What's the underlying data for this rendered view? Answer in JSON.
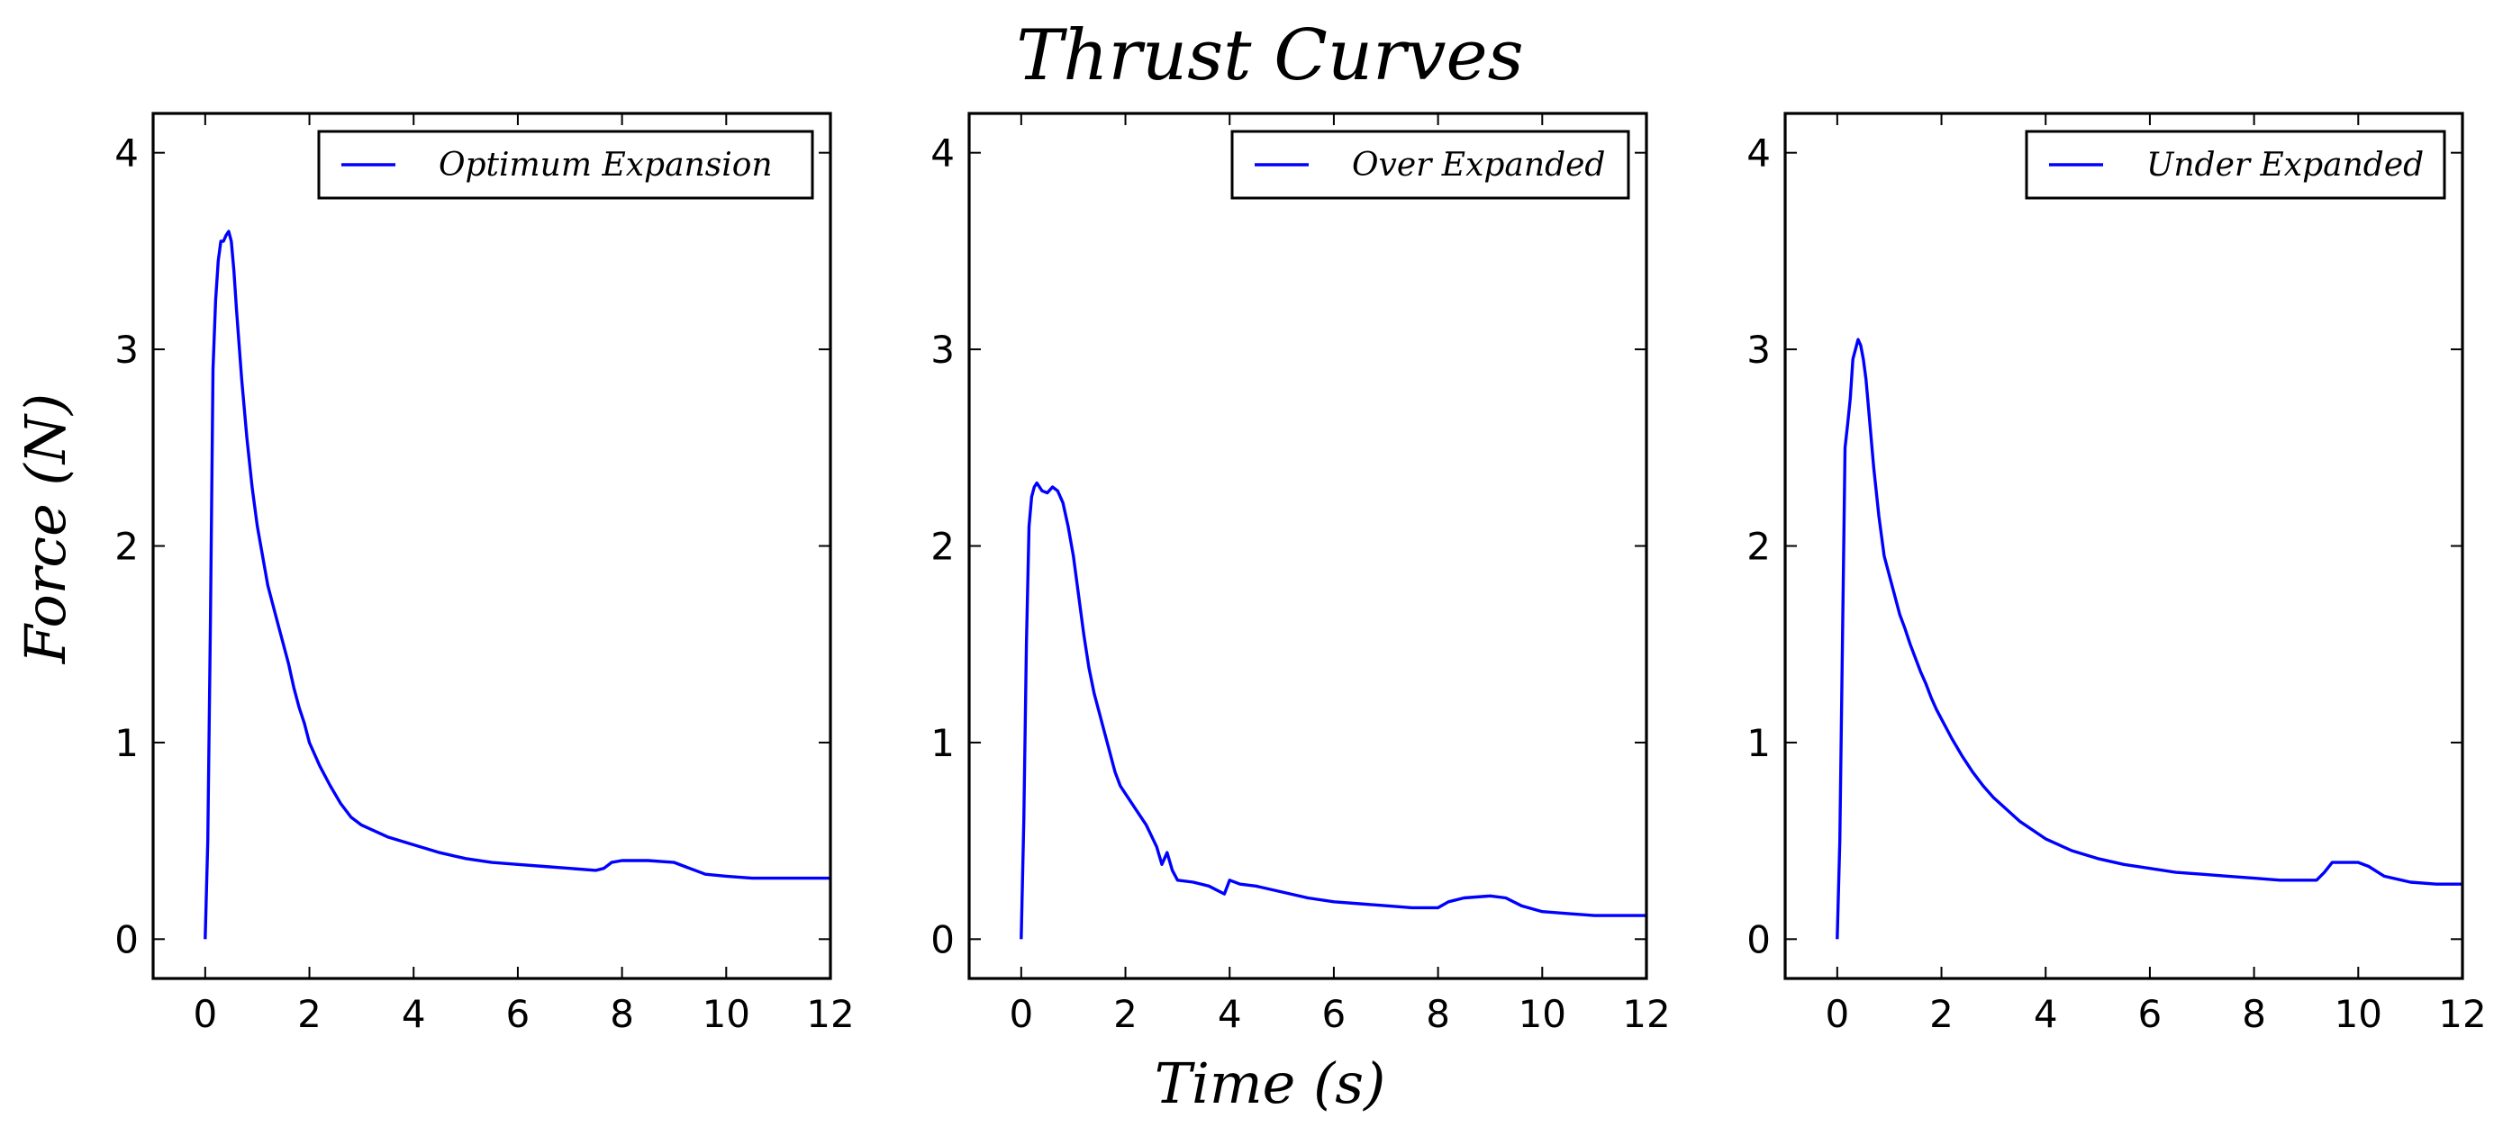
{
  "figure": {
    "title": "Thrust Curves",
    "xlabel": "Time (s)",
    "ylabel": "Force (N)"
  },
  "chart_data": [
    {
      "type": "line",
      "legend_position": "top-right",
      "grid": false,
      "xlim": [
        -1,
        12
      ],
      "ylim": [
        -0.2,
        4.2
      ],
      "xticks": [
        "0",
        "2",
        "4",
        "6",
        "8",
        "10",
        "12"
      ],
      "yticks": [
        "0",
        "1",
        "2",
        "3",
        "4"
      ],
      "series": [
        {
          "name": "Optimum Expansion",
          "color": "#0000ff",
          "points": [
            [
              0,
              0
            ],
            [
              0.05,
              0.5
            ],
            [
              0.1,
              1.6
            ],
            [
              0.15,
              2.9
            ],
            [
              0.2,
              3.25
            ],
            [
              0.25,
              3.45
            ],
            [
              0.3,
              3.55
            ],
            [
              0.35,
              3.55
            ],
            [
              0.4,
              3.58
            ],
            [
              0.45,
              3.6
            ],
            [
              0.5,
              3.55
            ],
            [
              0.55,
              3.4
            ],
            [
              0.6,
              3.2
            ],
            [
              0.7,
              2.85
            ],
            [
              0.8,
              2.55
            ],
            [
              0.9,
              2.3
            ],
            [
              1.0,
              2.1
            ],
            [
              1.1,
              1.95
            ],
            [
              1.2,
              1.8
            ],
            [
              1.3,
              1.7
            ],
            [
              1.4,
              1.6
            ],
            [
              1.5,
              1.5
            ],
            [
              1.6,
              1.4
            ],
            [
              1.7,
              1.28
            ],
            [
              1.8,
              1.18
            ],
            [
              1.9,
              1.1
            ],
            [
              2.0,
              1.0
            ],
            [
              2.2,
              0.88
            ],
            [
              2.4,
              0.78
            ],
            [
              2.6,
              0.69
            ],
            [
              2.8,
              0.62
            ],
            [
              3.0,
              0.58
            ],
            [
              3.5,
              0.52
            ],
            [
              4.0,
              0.48
            ],
            [
              4.5,
              0.44
            ],
            [
              5.0,
              0.41
            ],
            [
              5.5,
              0.39
            ],
            [
              6.0,
              0.38
            ],
            [
              6.5,
              0.37
            ],
            [
              7.0,
              0.36
            ],
            [
              7.5,
              0.35
            ],
            [
              7.65,
              0.36
            ],
            [
              7.8,
              0.39
            ],
            [
              8.0,
              0.4
            ],
            [
              8.5,
              0.4
            ],
            [
              9.0,
              0.39
            ],
            [
              9.3,
              0.36
            ],
            [
              9.6,
              0.33
            ],
            [
              10.0,
              0.32
            ],
            [
              10.5,
              0.31
            ],
            [
              11.0,
              0.31
            ],
            [
              12.0,
              0.31
            ]
          ]
        }
      ]
    },
    {
      "type": "line",
      "legend_position": "top-right",
      "grid": false,
      "xlim": [
        -1,
        12
      ],
      "ylim": [
        -0.2,
        4.2
      ],
      "xticks": [
        "0",
        "2",
        "4",
        "6",
        "8",
        "10",
        "12"
      ],
      "yticks": [
        "0",
        "1",
        "2",
        "3",
        "4"
      ],
      "series": [
        {
          "name": "Over Expanded",
          "color": "#0000ff",
          "points": [
            [
              0,
              0
            ],
            [
              0.05,
              0.6
            ],
            [
              0.1,
              1.5
            ],
            [
              0.15,
              2.1
            ],
            [
              0.2,
              2.25
            ],
            [
              0.25,
              2.3
            ],
            [
              0.3,
              2.32
            ],
            [
              0.4,
              2.28
            ],
            [
              0.5,
              2.27
            ],
            [
              0.6,
              2.3
            ],
            [
              0.7,
              2.28
            ],
            [
              0.8,
              2.22
            ],
            [
              0.9,
              2.1
            ],
            [
              1.0,
              1.95
            ],
            [
              1.1,
              1.75
            ],
            [
              1.2,
              1.55
            ],
            [
              1.3,
              1.38
            ],
            [
              1.4,
              1.25
            ],
            [
              1.5,
              1.15
            ],
            [
              1.6,
              1.05
            ],
            [
              1.7,
              0.95
            ],
            [
              1.8,
              0.85
            ],
            [
              1.9,
              0.78
            ],
            [
              2.0,
              0.74
            ],
            [
              2.2,
              0.66
            ],
            [
              2.4,
              0.58
            ],
            [
              2.6,
              0.47
            ],
            [
              2.7,
              0.38
            ],
            [
              2.8,
              0.44
            ],
            [
              2.9,
              0.35
            ],
            [
              3.0,
              0.3
            ],
            [
              3.3,
              0.29
            ],
            [
              3.6,
              0.27
            ],
            [
              3.9,
              0.23
            ],
            [
              4.0,
              0.3
            ],
            [
              4.2,
              0.28
            ],
            [
              4.5,
              0.27
            ],
            [
              5.0,
              0.24
            ],
            [
              5.5,
              0.21
            ],
            [
              6.0,
              0.19
            ],
            [
              6.5,
              0.18
            ],
            [
              7.0,
              0.17
            ],
            [
              7.5,
              0.16
            ],
            [
              8.0,
              0.16
            ],
            [
              8.2,
              0.19
            ],
            [
              8.5,
              0.21
            ],
            [
              9.0,
              0.22
            ],
            [
              9.3,
              0.21
            ],
            [
              9.6,
              0.17
            ],
            [
              10.0,
              0.14
            ],
            [
              10.5,
              0.13
            ],
            [
              11.0,
              0.12
            ],
            [
              12.0,
              0.12
            ]
          ]
        }
      ]
    },
    {
      "type": "line",
      "legend_position": "top-right",
      "grid": false,
      "xlim": [
        -1,
        12
      ],
      "ylim": [
        -0.2,
        4.2
      ],
      "xticks": [
        "0",
        "2",
        "4",
        "6",
        "8",
        "10",
        "12"
      ],
      "yticks": [
        "0",
        "1",
        "2",
        "3",
        "4"
      ],
      "series": [
        {
          "name": "Under Expanded",
          "color": "#0000ff",
          "points": [
            [
              0,
              0
            ],
            [
              0.05,
              0.5
            ],
            [
              0.1,
              1.5
            ],
            [
              0.15,
              2.5
            ],
            [
              0.2,
              2.62
            ],
            [
              0.25,
              2.75
            ],
            [
              0.3,
              2.95
            ],
            [
              0.35,
              3.0
            ],
            [
              0.4,
              3.05
            ],
            [
              0.45,
              3.02
            ],
            [
              0.5,
              2.95
            ],
            [
              0.55,
              2.85
            ],
            [
              0.6,
              2.7
            ],
            [
              0.7,
              2.4
            ],
            [
              0.8,
              2.15
            ],
            [
              0.9,
              1.95
            ],
            [
              1.0,
              1.85
            ],
            [
              1.1,
              1.75
            ],
            [
              1.2,
              1.65
            ],
            [
              1.3,
              1.58
            ],
            [
              1.4,
              1.5
            ],
            [
              1.5,
              1.43
            ],
            [
              1.6,
              1.36
            ],
            [
              1.7,
              1.3
            ],
            [
              1.8,
              1.23
            ],
            [
              1.9,
              1.17
            ],
            [
              2.0,
              1.12
            ],
            [
              2.2,
              1.02
            ],
            [
              2.4,
              0.93
            ],
            [
              2.6,
              0.85
            ],
            [
              2.8,
              0.78
            ],
            [
              3.0,
              0.72
            ],
            [
              3.5,
              0.6
            ],
            [
              4.0,
              0.51
            ],
            [
              4.5,
              0.45
            ],
            [
              5.0,
              0.41
            ],
            [
              5.5,
              0.38
            ],
            [
              6.0,
              0.36
            ],
            [
              6.5,
              0.34
            ],
            [
              7.0,
              0.33
            ],
            [
              7.5,
              0.32
            ],
            [
              8.0,
              0.31
            ],
            [
              8.5,
              0.3
            ],
            [
              9.0,
              0.3
            ],
            [
              9.2,
              0.3
            ],
            [
              9.35,
              0.34
            ],
            [
              9.5,
              0.39
            ],
            [
              10.0,
              0.39
            ],
            [
              10.2,
              0.37
            ],
            [
              10.5,
              0.32
            ],
            [
              11.0,
              0.29
            ],
            [
              11.5,
              0.28
            ],
            [
              12.0,
              0.28
            ]
          ]
        }
      ]
    }
  ]
}
